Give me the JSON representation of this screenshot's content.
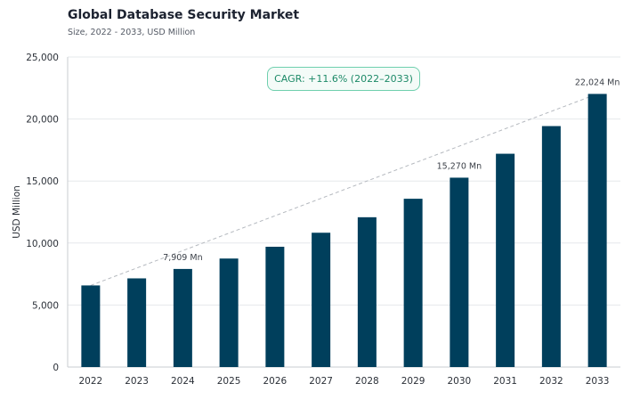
{
  "chart_data": {
    "type": "bar",
    "title": "Global Database Security Market",
    "subtitle": "Size, 2022 - 2033, USD Million",
    "ylabel": "USD Million",
    "xlabel": "",
    "categories": [
      "2022",
      "2023",
      "2024",
      "2025",
      "2026",
      "2027",
      "2028",
      "2029",
      "2030",
      "2031",
      "2032",
      "2033"
    ],
    "values": [
      6580,
      7150,
      7909,
      8750,
      9700,
      10830,
      12080,
      13570,
      15270,
      17200,
      19430,
      22024
    ],
    "ylim": [
      0,
      25000
    ],
    "yticks": [
      0,
      5000,
      10000,
      15000,
      20000,
      25000
    ],
    "ytick_labels": [
      "0",
      "5,000",
      "10,000",
      "15,000",
      "20,000",
      "25,000"
    ],
    "data_labels": [
      {
        "category": "2024",
        "text": "7,909 Mn"
      },
      {
        "category": "2030",
        "text": "15,270 Mn"
      },
      {
        "category": "2033",
        "text": "22,024 Mn"
      }
    ],
    "annotation": "CAGR: +11.6% (2022–2033)",
    "trend_line": {
      "from": "2022",
      "to": "2033",
      "style": "dashed"
    },
    "grid": true,
    "bar_color": "#003f5c",
    "accent_color": "#1d8a68"
  }
}
